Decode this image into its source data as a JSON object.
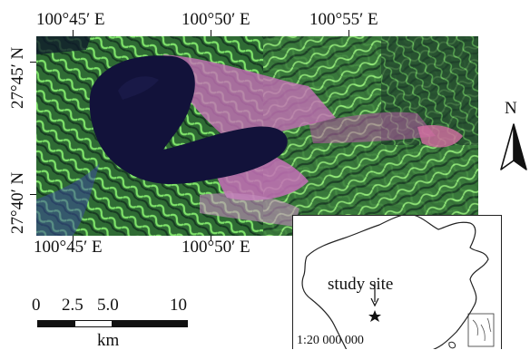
{
  "top_axis": {
    "labels": [
      "100°45′ E",
      "100°50′ E",
      "100°55′ E"
    ]
  },
  "bottom_axis": {
    "labels": [
      "100°45′ E",
      "100°50′ E"
    ]
  },
  "left_axis": {
    "labels": [
      "27°45′ N",
      "27°40′ N"
    ]
  },
  "north_arrow": {
    "label": "N"
  },
  "scale_bar": {
    "ticks": [
      "0",
      "2.5",
      "5.0",
      "10"
    ],
    "unit": "km"
  },
  "inset": {
    "site_label": "study site",
    "scale_text": "1:20 000 000"
  },
  "colors": {
    "lake": "#12123a",
    "vegetation": "#3f8a3a",
    "bright_veg": "#6fd65a",
    "urban": "#c670b8",
    "shadow": "#1f3a2a"
  }
}
